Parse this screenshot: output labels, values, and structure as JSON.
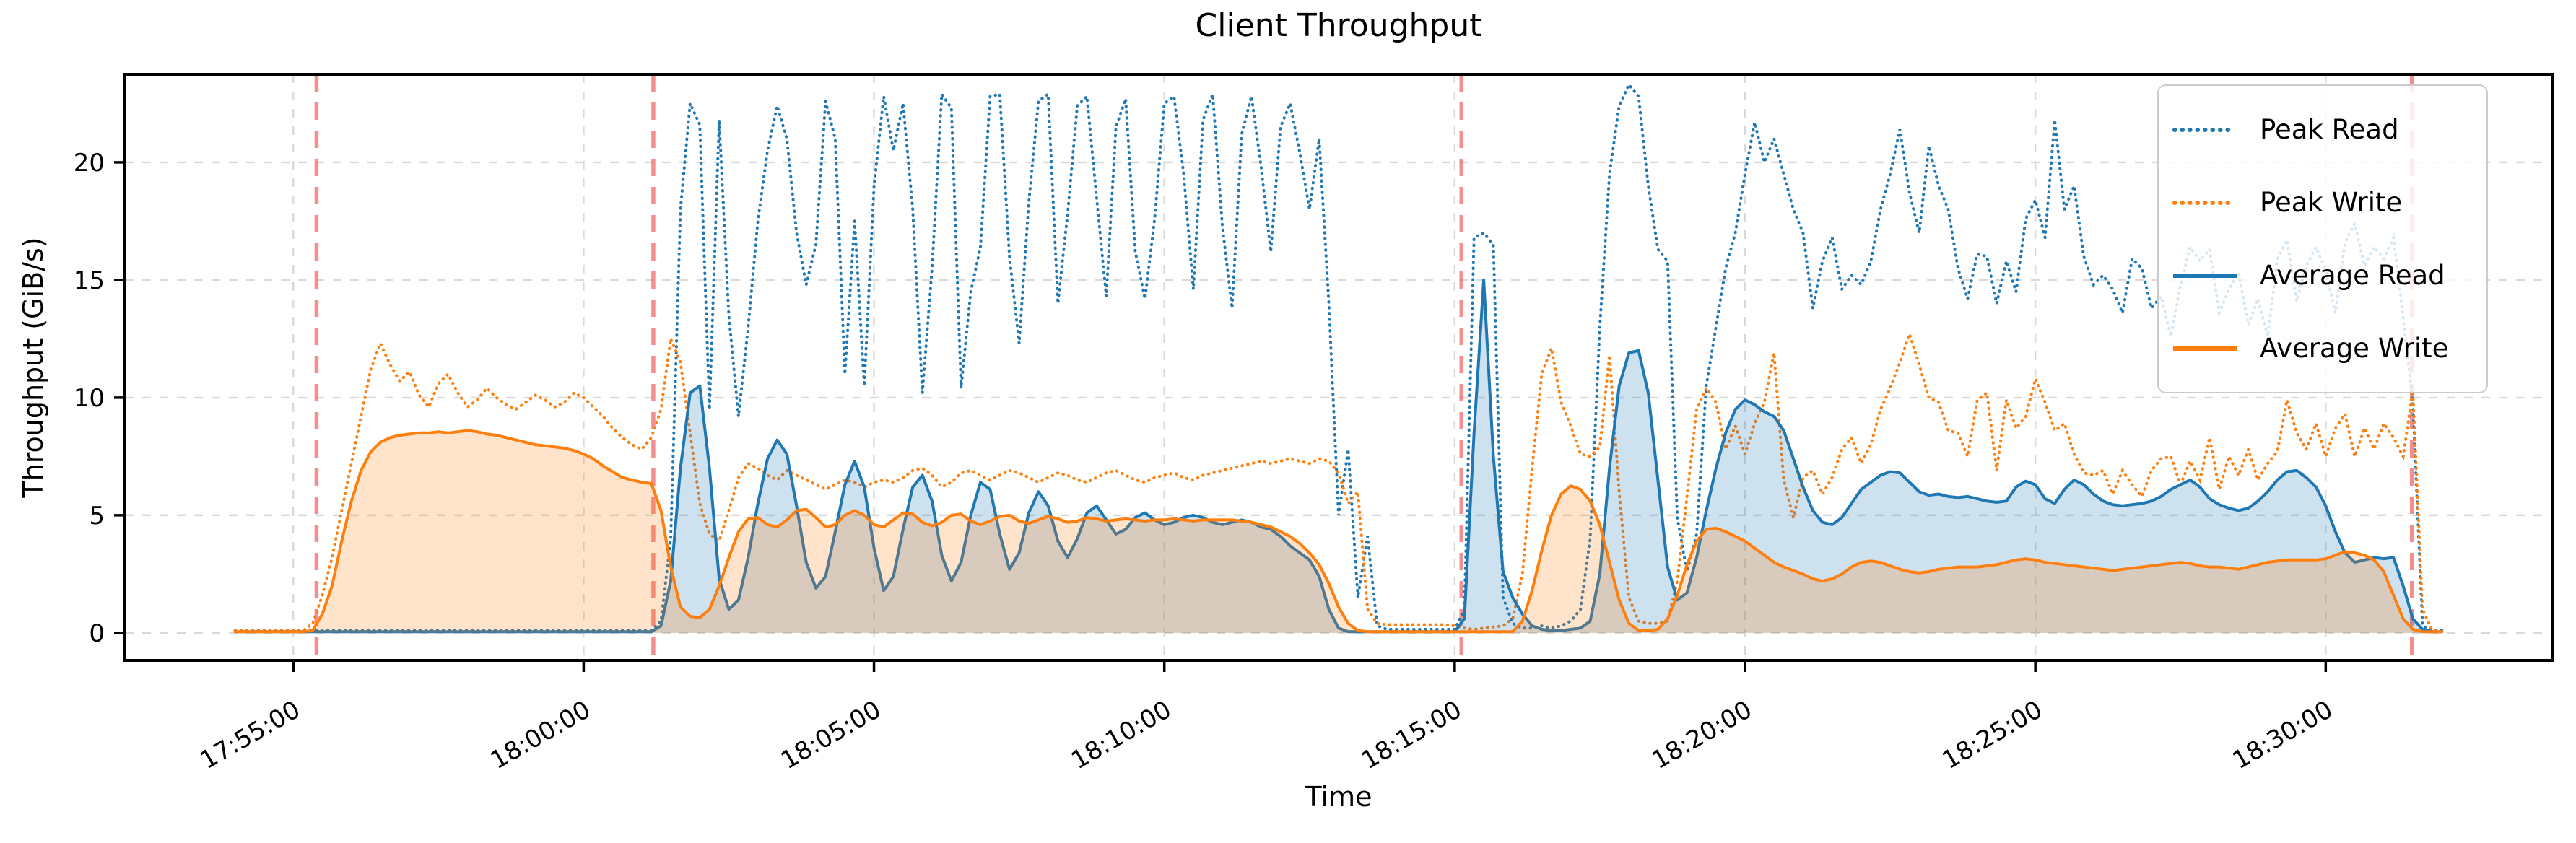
{
  "chart_data": {
    "type": "line",
    "title": "Client Throughput",
    "xlabel": "Time",
    "ylabel": "Throughput (GiB/s)",
    "grid": true,
    "legend_position": "upper right",
    "background": "#ffffff",
    "xlim": [
      "17:52:06",
      "18:33:54"
    ],
    "ylim": [
      -1.17,
      23.74
    ],
    "x_ticks": [
      "17:55:00",
      "18:00:00",
      "18:05:00",
      "18:10:00",
      "18:15:00",
      "18:20:00",
      "18:25:00",
      "18:30:00"
    ],
    "y_ticks": [
      0,
      5,
      10,
      15,
      20
    ],
    "grid_color": "#d9d9d9",
    "events": {
      "color": "#f06a6a",
      "times": [
        "17:55:24",
        "18:01:12",
        "18:15:07",
        "18:31:29"
      ]
    },
    "x_start": "17:54:00",
    "x_step_seconds": 10,
    "x_end": "18:32:00",
    "series": [
      {
        "name": "Peak Read",
        "color": "#1f77b4",
        "style": "dotted",
        "fill": false,
        "values": [
          0.1,
          0.1,
          0.1,
          0.1,
          0.1,
          0.1,
          0.1,
          0.1,
          0.1,
          0.1,
          0.1,
          0.1,
          0.1,
          0.1,
          0.1,
          0.1,
          0.1,
          0.1,
          0.1,
          0.1,
          0.1,
          0.1,
          0.1,
          0.1,
          0.1,
          0.1,
          0.1,
          0.1,
          0.1,
          0.1,
          0.1,
          0.1,
          0.1,
          0.1,
          0.1,
          0.1,
          0.1,
          0.1,
          0.1,
          0.1,
          0.1,
          0.1,
          0.1,
          0.1,
          0.5,
          4.0,
          18.0,
          22.5,
          21.6,
          9.5,
          21.8,
          13.5,
          9.2,
          13.0,
          17.5,
          20.5,
          22.4,
          21.0,
          17.0,
          14.8,
          16.5,
          22.6,
          21.0,
          11.0,
          17.5,
          10.5,
          19.0,
          22.8,
          20.5,
          22.5,
          18.0,
          10.2,
          15.5,
          22.9,
          22.3,
          10.4,
          14.5,
          16.4,
          22.8,
          22.9,
          16.0,
          12.3,
          18.3,
          22.6,
          22.9,
          14.0,
          17.8,
          22.4,
          22.8,
          18.5,
          14.3,
          21.5,
          22.7,
          16.2,
          14.2,
          17.6,
          22.5,
          22.8,
          19.5,
          14.6,
          21.8,
          22.9,
          17.3,
          13.8,
          21.2,
          22.8,
          19.8,
          16.2,
          21.5,
          22.5,
          20.4,
          18.0,
          21.0,
          14.0,
          5.0,
          7.8,
          1.5,
          4.1,
          0.3,
          0.15,
          0.15,
          0.15,
          0.15,
          0.15,
          0.15,
          0.15,
          0.15,
          1.0,
          16.8,
          17.0,
          16.5,
          1.5,
          0.4,
          0.2,
          0.2,
          0.3,
          0.2,
          0.3,
          0.5,
          1.0,
          4.0,
          13.0,
          19.5,
          22.4,
          23.3,
          22.8,
          19.0,
          16.3,
          15.8,
          4.9,
          2.6,
          4.2,
          10.5,
          13.0,
          15.5,
          17.0,
          19.5,
          21.7,
          20.0,
          21.0,
          19.5,
          18.0,
          17.0,
          13.8,
          15.8,
          16.8,
          14.6,
          15.2,
          14.8,
          15.8,
          18.0,
          19.5,
          21.4,
          18.7,
          17.0,
          20.7,
          19.0,
          18.0,
          15.5,
          14.2,
          16.1,
          16.0,
          14.0,
          15.8,
          14.5,
          17.6,
          18.4,
          16.8,
          21.8,
          18.0,
          19.0,
          16.0,
          14.8,
          15.2,
          14.6,
          13.6,
          15.9,
          15.5,
          13.8,
          14.3,
          12.6,
          14.8,
          16.4,
          15.8,
          16.3,
          13.6,
          14.6,
          15.3,
          13.1,
          14.2,
          12.6,
          15.9,
          16.7,
          14.1,
          15.6,
          16.4,
          15.4,
          13.6,
          16.6,
          17.4,
          15.6,
          16.4,
          15.9,
          16.8,
          13.4,
          9.8,
          0.3,
          0.1,
          0.1
        ]
      },
      {
        "name": "Peak Write",
        "color": "#ff7f0e",
        "style": "dotted",
        "fill": false,
        "values": [
          0.1,
          0.1,
          0.1,
          0.1,
          0.1,
          0.1,
          0.1,
          0.1,
          0.4,
          1.6,
          3.2,
          5.2,
          7.2,
          9.2,
          11.2,
          12.3,
          11.4,
          10.7,
          11.1,
          10.1,
          9.6,
          10.6,
          11.0,
          10.2,
          9.6,
          9.9,
          10.4,
          10.0,
          9.7,
          9.5,
          9.8,
          10.1,
          9.9,
          9.6,
          9.8,
          10.2,
          10.0,
          9.6,
          9.2,
          8.7,
          8.3,
          8.0,
          7.8,
          8.3,
          9.5,
          12.5,
          11.5,
          8.5,
          5.5,
          4.2,
          3.9,
          5.2,
          6.6,
          7.2,
          7.0,
          6.7,
          6.5,
          6.9,
          6.7,
          6.5,
          6.3,
          6.1,
          6.3,
          6.5,
          6.4,
          6.2,
          6.4,
          6.5,
          6.4,
          6.6,
          6.9,
          7.0,
          6.7,
          6.2,
          6.4,
          6.8,
          6.9,
          6.7,
          6.5,
          6.7,
          6.9,
          6.8,
          6.6,
          6.4,
          6.6,
          6.8,
          6.7,
          6.5,
          6.4,
          6.6,
          6.8,
          6.9,
          6.7,
          6.5,
          6.4,
          6.6,
          6.7,
          6.8,
          6.6,
          6.5,
          6.7,
          6.8,
          6.9,
          7.0,
          7.1,
          7.2,
          7.3,
          7.2,
          7.3,
          7.4,
          7.3,
          7.2,
          7.4,
          7.3,
          6.8,
          5.5,
          6.0,
          1.0,
          0.4,
          0.35,
          0.35,
          0.35,
          0.35,
          0.35,
          0.35,
          0.35,
          0.3,
          0.2,
          0.15,
          0.2,
          0.25,
          0.3,
          0.6,
          2.5,
          7.0,
          11.0,
          12.1,
          9.8,
          8.8,
          7.6,
          7.5,
          7.9,
          11.8,
          6.0,
          1.5,
          0.5,
          0.4,
          0.4,
          0.5,
          2.2,
          5.8,
          9.5,
          10.4,
          9.8,
          7.8,
          8.8,
          7.6,
          8.9,
          9.8,
          11.9,
          6.5,
          4.9,
          6.6,
          6.9,
          5.9,
          6.6,
          7.8,
          8.3,
          7.2,
          8.0,
          9.5,
          10.4,
          11.5,
          12.7,
          11.4,
          10.0,
          9.8,
          8.6,
          8.5,
          7.5,
          9.9,
          10.2,
          6.9,
          9.9,
          8.7,
          9.2,
          10.8,
          9.8,
          8.6,
          8.9,
          7.6,
          6.8,
          6.7,
          6.9,
          5.9,
          6.9,
          6.3,
          5.8,
          6.9,
          7.4,
          7.5,
          6.3,
          7.3,
          6.5,
          8.3,
          6.1,
          7.5,
          6.7,
          7.8,
          6.5,
          7.2,
          7.7,
          9.9,
          8.5,
          7.8,
          8.9,
          7.5,
          8.7,
          9.3,
          7.5,
          8.7,
          7.8,
          8.9,
          8.3,
          7.5,
          10.3,
          1.0,
          0.1,
          0.05
        ]
      },
      {
        "name": "Average Read",
        "color": "#1f77b4",
        "style": "solid",
        "fill": true,
        "values": [
          0.05,
          0.05,
          0.05,
          0.05,
          0.05,
          0.05,
          0.05,
          0.05,
          0.05,
          0.05,
          0.05,
          0.05,
          0.05,
          0.05,
          0.05,
          0.05,
          0.05,
          0.05,
          0.05,
          0.05,
          0.05,
          0.05,
          0.05,
          0.05,
          0.05,
          0.05,
          0.05,
          0.05,
          0.05,
          0.05,
          0.05,
          0.05,
          0.05,
          0.05,
          0.05,
          0.05,
          0.05,
          0.05,
          0.05,
          0.05,
          0.05,
          0.05,
          0.05,
          0.05,
          0.3,
          2.2,
          7.0,
          10.2,
          10.5,
          7.0,
          2.3,
          1.0,
          1.4,
          3.2,
          5.5,
          7.4,
          8.2,
          7.6,
          5.4,
          3.0,
          1.9,
          2.4,
          4.3,
          6.3,
          7.3,
          6.2,
          3.6,
          1.8,
          2.4,
          4.4,
          6.2,
          6.7,
          5.6,
          3.3,
          2.2,
          3.0,
          5.0,
          6.4,
          6.1,
          4.2,
          2.7,
          3.4,
          5.1,
          6.0,
          5.4,
          3.9,
          3.2,
          4.0,
          5.1,
          5.4,
          4.8,
          4.2,
          4.4,
          4.9,
          5.1,
          4.8,
          4.6,
          4.7,
          4.9,
          5.0,
          4.9,
          4.7,
          4.6,
          4.7,
          4.8,
          4.7,
          4.5,
          4.4,
          4.1,
          3.7,
          3.4,
          3.1,
          2.4,
          1.0,
          0.2,
          0.05,
          0.05,
          0.05,
          0.05,
          0.05,
          0.05,
          0.05,
          0.05,
          0.05,
          0.05,
          0.05,
          0.05,
          0.6,
          8.5,
          15.0,
          7.5,
          2.6,
          1.5,
          0.8,
          0.3,
          0.15,
          0.1,
          0.1,
          0.15,
          0.2,
          0.5,
          2.5,
          7.0,
          10.5,
          11.9,
          12.0,
          10.2,
          6.5,
          2.8,
          1.4,
          1.7,
          3.2,
          5.2,
          7.0,
          8.5,
          9.5,
          9.9,
          9.7,
          9.4,
          9.2,
          8.6,
          7.4,
          6.2,
          5.2,
          4.7,
          4.6,
          4.9,
          5.5,
          6.1,
          6.4,
          6.7,
          6.85,
          6.8,
          6.4,
          6.0,
          5.85,
          5.9,
          5.8,
          5.75,
          5.8,
          5.7,
          5.6,
          5.55,
          5.6,
          6.2,
          6.45,
          6.3,
          5.7,
          5.5,
          6.1,
          6.5,
          6.3,
          5.9,
          5.6,
          5.45,
          5.4,
          5.45,
          5.5,
          5.6,
          5.8,
          6.1,
          6.3,
          6.5,
          6.2,
          5.7,
          5.45,
          5.3,
          5.2,
          5.3,
          5.6,
          6.0,
          6.5,
          6.85,
          6.9,
          6.6,
          6.2,
          5.4,
          4.3,
          3.4,
          3.0,
          3.1,
          3.2,
          3.15,
          3.2,
          2.0,
          0.6,
          0.15,
          0.05,
          0.05
        ]
      },
      {
        "name": "Average Write",
        "color": "#ff7f0e",
        "style": "solid",
        "fill": true,
        "values": [
          0.05,
          0.05,
          0.05,
          0.05,
          0.05,
          0.05,
          0.05,
          0.05,
          0.1,
          0.8,
          2.0,
          3.9,
          5.6,
          6.9,
          7.7,
          8.1,
          8.3,
          8.4,
          8.45,
          8.5,
          8.5,
          8.55,
          8.5,
          8.55,
          8.6,
          8.55,
          8.45,
          8.4,
          8.3,
          8.2,
          8.1,
          8.0,
          7.95,
          7.9,
          7.85,
          7.75,
          7.6,
          7.4,
          7.1,
          6.85,
          6.6,
          6.5,
          6.4,
          6.35,
          5.2,
          2.8,
          1.1,
          0.7,
          0.65,
          1.0,
          2.0,
          3.2,
          4.3,
          4.85,
          4.9,
          4.6,
          4.5,
          4.8,
          5.2,
          5.25,
          4.9,
          4.5,
          4.6,
          5.0,
          5.2,
          5.0,
          4.6,
          4.5,
          4.8,
          5.1,
          5.05,
          4.7,
          4.55,
          4.7,
          5.0,
          5.05,
          4.75,
          4.6,
          4.75,
          4.95,
          5.0,
          4.75,
          4.65,
          4.8,
          4.95,
          4.85,
          4.7,
          4.75,
          4.9,
          4.85,
          4.75,
          4.8,
          4.85,
          4.8,
          4.75,
          4.8,
          4.8,
          4.85,
          4.8,
          4.75,
          4.8,
          4.8,
          4.8,
          4.8,
          4.75,
          4.7,
          4.6,
          4.5,
          4.3,
          4.1,
          3.8,
          3.4,
          2.9,
          2.1,
          1.1,
          0.4,
          0.1,
          0.05,
          0.05,
          0.05,
          0.05,
          0.05,
          0.05,
          0.05,
          0.05,
          0.05,
          0.05,
          0.05,
          0.05,
          0.05,
          0.05,
          0.05,
          0.05,
          0.5,
          1.8,
          3.5,
          5.0,
          5.9,
          6.25,
          6.1,
          5.6,
          4.6,
          3.0,
          1.4,
          0.4,
          0.1,
          0.1,
          0.15,
          0.6,
          1.6,
          2.9,
          3.9,
          4.4,
          4.45,
          4.3,
          4.1,
          3.9,
          3.6,
          3.3,
          3.0,
          2.8,
          2.65,
          2.5,
          2.3,
          2.2,
          2.3,
          2.5,
          2.8,
          3.0,
          3.05,
          3.0,
          2.85,
          2.7,
          2.6,
          2.55,
          2.6,
          2.7,
          2.75,
          2.8,
          2.8,
          2.8,
          2.85,
          2.9,
          3.0,
          3.1,
          3.15,
          3.1,
          3.0,
          2.95,
          2.9,
          2.85,
          2.8,
          2.75,
          2.7,
          2.65,
          2.7,
          2.75,
          2.8,
          2.85,
          2.9,
          2.95,
          3.0,
          2.95,
          2.85,
          2.8,
          2.8,
          2.75,
          2.7,
          2.8,
          2.9,
          3.0,
          3.05,
          3.1,
          3.1,
          3.1,
          3.1,
          3.15,
          3.3,
          3.45,
          3.4,
          3.3,
          3.1,
          2.6,
          1.6,
          0.6,
          0.15,
          0.05,
          0.05,
          0.05
        ]
      }
    ]
  }
}
